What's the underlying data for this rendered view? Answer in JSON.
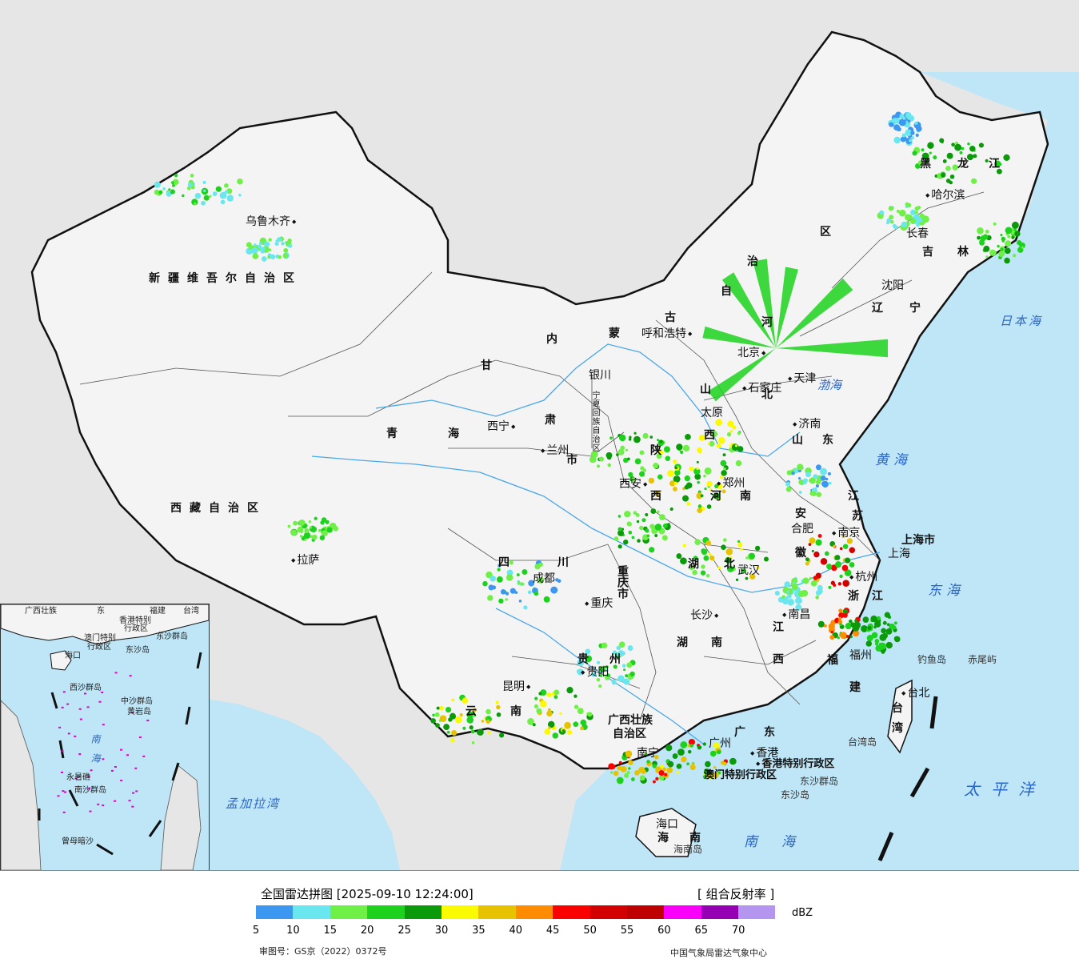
{
  "title": "全国雷达拼图 [2025-09-10 12:24:00]",
  "product": "[ 组合反射率 ]",
  "unit": "dBZ",
  "approval_number": "审图号：GS京（2022）0372号",
  "source": "中国气象局雷达气象中心",
  "legend": {
    "ticks": [
      "5",
      "10",
      "15",
      "20",
      "25",
      "30",
      "35",
      "40",
      "45",
      "50",
      "55",
      "60",
      "65",
      "70"
    ],
    "colors": [
      "#3c97f0",
      "#6ae6ee",
      "#6ef046",
      "#1cd21c",
      "#0a9a0a",
      "#fafa00",
      "#e6c200",
      "#ff8c00",
      "#fa0000",
      "#d20000",
      "#be0000",
      "#fa00fa",
      "#9600b4",
      "#b496f0"
    ]
  },
  "colors": {
    "sea": "#bfe6f7",
    "land": "#f4f4f4",
    "outside": "#e6e6e6",
    "border": "#111111",
    "river": "#4aa8e8"
  },
  "regions": [
    {
      "name": "新疆维吾尔自治区"
    },
    {
      "name": "西藏自治区"
    },
    {
      "name": "青"
    },
    {
      "name": "海"
    },
    {
      "name": "甘"
    },
    {
      "name": "肃"
    },
    {
      "name": "内"
    },
    {
      "name": "蒙"
    },
    {
      "name": "古"
    },
    {
      "name": "自"
    },
    {
      "name": "治"
    },
    {
      "name": "区"
    },
    {
      "name": "黑"
    },
    {
      "name": "龙"
    },
    {
      "name": "江"
    },
    {
      "name": "吉"
    },
    {
      "name": "林"
    },
    {
      "name": "辽"
    },
    {
      "name": "宁"
    },
    {
      "name": "河"
    },
    {
      "name": "北"
    },
    {
      "name": "山"
    },
    {
      "name": "西"
    },
    {
      "name": "山"
    },
    {
      "name": "东"
    },
    {
      "name": "陕"
    },
    {
      "name": "西"
    },
    {
      "name": "河"
    },
    {
      "name": "南"
    },
    {
      "name": "江"
    },
    {
      "name": "苏"
    },
    {
      "name": "安"
    },
    {
      "name": "徽"
    },
    {
      "name": "上海市"
    },
    {
      "name": "浙"
    },
    {
      "name": "江"
    },
    {
      "name": "四"
    },
    {
      "name": "川"
    },
    {
      "name": "重庆市"
    },
    {
      "name": "湖"
    },
    {
      "name": "北"
    },
    {
      "name": "湖"
    },
    {
      "name": "南"
    },
    {
      "name": "江"
    },
    {
      "name": "西"
    },
    {
      "name": "福"
    },
    {
      "name": "建"
    },
    {
      "name": "贵"
    },
    {
      "name": "州"
    },
    {
      "name": "云"
    },
    {
      "name": "南"
    },
    {
      "name": "广西壮族"
    },
    {
      "name": "自治区"
    },
    {
      "name": "广"
    },
    {
      "name": "东"
    },
    {
      "name": "海"
    },
    {
      "name": "南"
    },
    {
      "name": "台"
    },
    {
      "name": "湾"
    },
    {
      "name": "市"
    },
    {
      "name": "宁夏回族自治区"
    }
  ],
  "cities": [
    {
      "name": "乌鲁木齐"
    },
    {
      "name": "拉萨"
    },
    {
      "name": "西宁"
    },
    {
      "name": "兰州"
    },
    {
      "name": "银川"
    },
    {
      "name": "呼和浩特"
    },
    {
      "name": "北京"
    },
    {
      "name": "天津"
    },
    {
      "name": "石家庄"
    },
    {
      "name": "太原"
    },
    {
      "name": "济南"
    },
    {
      "name": "郑州"
    },
    {
      "name": "西安"
    },
    {
      "name": "合肥"
    },
    {
      "name": "南京"
    },
    {
      "name": "上海"
    },
    {
      "name": "杭州"
    },
    {
      "name": "成都"
    },
    {
      "name": "重庆"
    },
    {
      "name": "武汉"
    },
    {
      "name": "长沙"
    },
    {
      "name": "南昌"
    },
    {
      "name": "福州"
    },
    {
      "name": "贵阳"
    },
    {
      "name": "昆明"
    },
    {
      "name": "南宁"
    },
    {
      "name": "广州"
    },
    {
      "name": "香港"
    },
    {
      "name": "海口"
    },
    {
      "name": "台北"
    },
    {
      "name": "沈阳"
    },
    {
      "name": "长春"
    },
    {
      "name": "哈尔滨"
    }
  ],
  "seas": [
    {
      "name": "日本海"
    },
    {
      "name": "渤海"
    },
    {
      "name": "黄海"
    },
    {
      "name": "东海"
    },
    {
      "name": "太平洋"
    },
    {
      "name": "南海"
    },
    {
      "name": "孟加拉湾"
    }
  ],
  "islands": [
    {
      "name": "钓鱼岛"
    },
    {
      "name": "赤尾屿"
    },
    {
      "name": "台湾岛"
    },
    {
      "name": "海南岛"
    },
    {
      "name": "东沙群岛"
    },
    {
      "name": "东沙岛"
    },
    {
      "name": "香港特别行政区"
    },
    {
      "name": "澳门特别行政区"
    }
  ],
  "inset": {
    "labels": [
      {
        "name": "广西壮族"
      },
      {
        "name": "东"
      },
      {
        "name": "福建"
      },
      {
        "name": "台湾"
      },
      {
        "name": "香港特别"
      },
      {
        "name": "行政区"
      },
      {
        "name": "澳门特别"
      },
      {
        "name": "行政区"
      },
      {
        "name": "东沙群岛"
      },
      {
        "name": "海口"
      },
      {
        "name": "东沙岛"
      },
      {
        "name": "中沙群岛"
      },
      {
        "name": "黄岩岛"
      },
      {
        "name": "永暑礁"
      },
      {
        "name": "南沙群岛"
      },
      {
        "name": "曾母暗沙"
      },
      {
        "name": "西沙群岛"
      }
    ],
    "sea": "南海"
  }
}
